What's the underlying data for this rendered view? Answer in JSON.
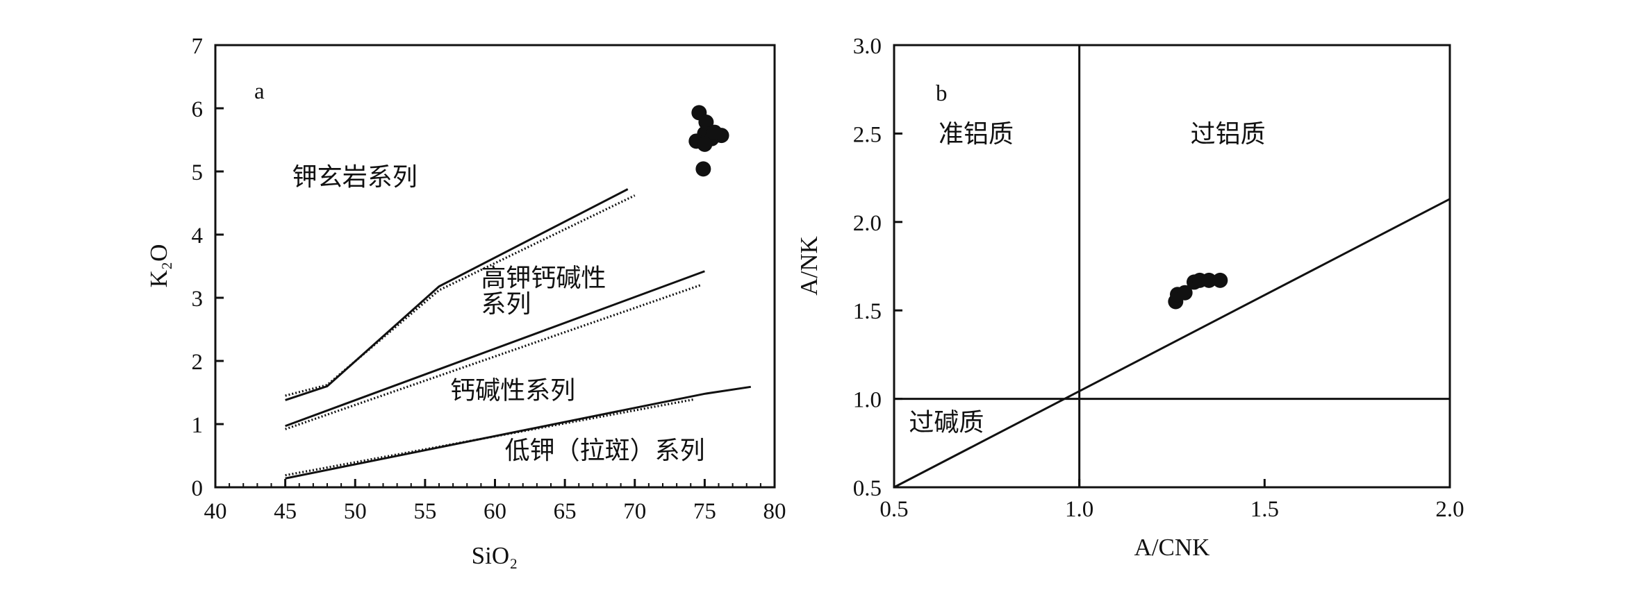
{
  "chart_data": [
    {
      "panel_label": "a",
      "type": "scatter",
      "xlabel": "SiO₂",
      "ylabel": "K₂O",
      "xlim": [
        40,
        80
      ],
      "ylim": [
        0,
        7
      ],
      "x_ticks": [
        "40",
        "45",
        "50",
        "55",
        "60",
        "65",
        "70",
        "75",
        "80"
      ],
      "y_ticks": [
        "0",
        "1",
        "2",
        "3",
        "4",
        "5",
        "6",
        "7"
      ],
      "grid": false,
      "points": [
        {
          "x": 74.6,
          "y": 5.93
        },
        {
          "x": 75.1,
          "y": 5.78
        },
        {
          "x": 75.0,
          "y": 5.6
        },
        {
          "x": 74.4,
          "y": 5.48
        },
        {
          "x": 75.5,
          "y": 5.52
        },
        {
          "x": 75.0,
          "y": 5.43
        },
        {
          "x": 76.2,
          "y": 5.57
        },
        {
          "x": 75.7,
          "y": 5.62
        },
        {
          "x": 74.9,
          "y": 5.04
        }
      ],
      "lines": [
        {
          "style": "solid",
          "points": [
            [
              45,
              1.38
            ],
            [
              48,
              1.6
            ],
            [
              56,
              3.18
            ],
            [
              69.5,
              4.72
            ]
          ]
        },
        {
          "style": "dotted",
          "points": [
            [
              45,
              1.45
            ],
            [
              48,
              1.62
            ],
            [
              56,
              3.12
            ],
            [
              70,
              4.62
            ]
          ]
        },
        {
          "style": "solid",
          "points": [
            [
              45,
              0.97
            ],
            [
              75,
              3.42
            ]
          ]
        },
        {
          "style": "dotted",
          "points": [
            [
              45,
              0.92
            ],
            [
              74.7,
              3.2
            ]
          ]
        },
        {
          "style": "solid",
          "points": [
            [
              45,
              0.14
            ],
            [
              75,
              1.48
            ],
            [
              78.3,
              1.59
            ]
          ]
        },
        {
          "style": "dotted",
          "points": [
            [
              45,
              0.19
            ],
            [
              74.2,
              1.39
            ]
          ]
        }
      ],
      "region_labels": [
        {
          "text": "钾玄岩系列",
          "x": 45.5,
          "y": 4.78
        },
        {
          "text": "高钾钙碱性",
          "x": 59.0,
          "y": 3.18
        },
        {
          "text": "系列",
          "x": 59.0,
          "y": 2.77
        },
        {
          "text": "钙碱性系列",
          "x": 56.8,
          "y": 1.4
        },
        {
          "text": "低钾（拉斑）系列",
          "x": 60.7,
          "y": 0.45
        }
      ]
    },
    {
      "panel_label": "b",
      "type": "scatter",
      "xlabel": "A/CNK",
      "ylabel": "A/NK",
      "xlim": [
        0.5,
        2.0
      ],
      "ylim": [
        0.5,
        3.0
      ],
      "x_ticks": [
        "0.5",
        "1.0",
        "1.5",
        "2.0"
      ],
      "y_ticks": [
        "0.5",
        "1.0",
        "1.5",
        "2.0",
        "2.5",
        "3.0"
      ],
      "grid": false,
      "points": [
        {
          "x": 1.26,
          "y": 1.55
        },
        {
          "x": 1.265,
          "y": 1.59
        },
        {
          "x": 1.285,
          "y": 1.6
        },
        {
          "x": 1.31,
          "y": 1.66
        },
        {
          "x": 1.325,
          "y": 1.67
        },
        {
          "x": 1.35,
          "y": 1.67
        },
        {
          "x": 1.38,
          "y": 1.67
        }
      ],
      "lines": [
        {
          "style": "solid",
          "points": [
            [
              1.0,
              0.5
            ],
            [
              1.0,
              3.0
            ]
          ]
        },
        {
          "style": "solid",
          "points": [
            [
              0.5,
              1.0
            ],
            [
              2.0,
              1.0
            ]
          ]
        },
        {
          "style": "solid",
          "points": [
            [
              0.5,
              0.5
            ],
            [
              2.0,
              2.13
            ]
          ]
        }
      ],
      "region_labels": [
        {
          "text": "准铝质",
          "x": 0.62,
          "y": 2.45
        },
        {
          "text": "过铝质",
          "x": 1.3,
          "y": 2.45
        },
        {
          "text": "过碱质",
          "x": 0.54,
          "y": 0.82
        }
      ]
    }
  ]
}
